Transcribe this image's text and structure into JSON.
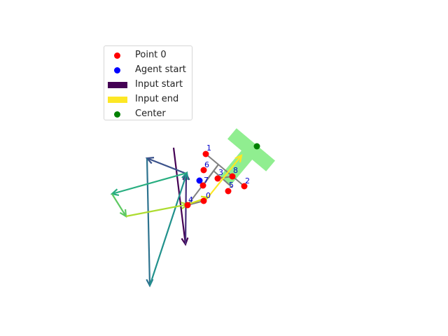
{
  "legend": {
    "items": [
      {
        "label": "Point 0",
        "kind": "dot",
        "color": "#ff0000"
      },
      {
        "label": "Agent start",
        "kind": "dot",
        "color": "#0000ff"
      },
      {
        "label": "Input start",
        "kind": "bar",
        "color": "#440154"
      },
      {
        "label": "Input end",
        "kind": "bar",
        "color": "#fde725"
      },
      {
        "label": "Center",
        "kind": "dot",
        "color": "#008000"
      }
    ]
  },
  "colors": {
    "point": "#ff0000",
    "point_label": "#0000cc",
    "agent": "#0000ff",
    "center": "#008000",
    "target_shape": "#90ee90",
    "skeleton": "#808080"
  },
  "points": [
    {
      "label": "0"
    },
    {
      "label": "1"
    },
    {
      "label": "2"
    },
    {
      "label": "3"
    },
    {
      "label": "4"
    },
    {
      "label": "5"
    },
    {
      "label": "6"
    },
    {
      "label": "7"
    },
    {
      "label": "8"
    }
  ],
  "input_arrows_count_note": ""
}
